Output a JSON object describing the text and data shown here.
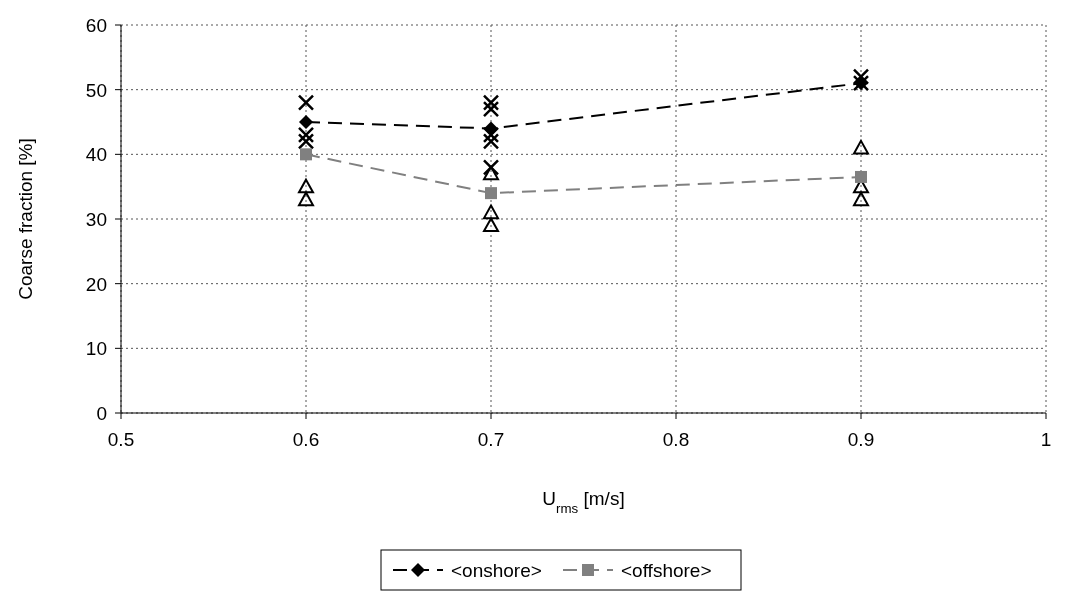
{
  "chart_data": {
    "type": "line",
    "xlabel": "U$_{rms}$ [m/s]",
    "ylabel": "Coarse fraction [%]",
    "xlim": [
      0.5,
      1
    ],
    "xticks": [
      0.5,
      0.6,
      0.7,
      0.8,
      0.9,
      1
    ],
    "ylim": [
      0,
      60
    ],
    "yticks": [
      0,
      10,
      20,
      30,
      40,
      50,
      60
    ],
    "grid": true,
    "legend": "bottom",
    "series": [
      {
        "type": "scatter",
        "marker": "cross",
        "color": "#000000",
        "x": [
          0.6,
          0.6,
          0.6,
          0.7,
          0.7,
          0.7,
          0.7,
          0.7,
          0.9,
          0.9
        ],
        "values": [
          48,
          43,
          42,
          48,
          47,
          43,
          42,
          38,
          52,
          51
        ]
      },
      {
        "type": "scatter",
        "marker": "triangle",
        "color": "#000000",
        "x": [
          0.6,
          0.6,
          0.7,
          0.7,
          0.7,
          0.9,
          0.9,
          0.9
        ],
        "values": [
          35,
          33,
          37,
          31,
          29,
          41,
          35,
          33
        ]
      },
      {
        "name": "<onshore>",
        "marker": "diamond",
        "line_style": "dashed",
        "color": "#000000",
        "x": [
          0.6,
          0.7,
          0.9
        ],
        "values": [
          45,
          44,
          51
        ]
      },
      {
        "name": "<offshore>",
        "marker": "square",
        "line_style": "dashed",
        "color": "#808080",
        "x": [
          0.6,
          0.7,
          0.9
        ],
        "values": [
          40,
          34,
          36.5
        ]
      }
    ]
  }
}
